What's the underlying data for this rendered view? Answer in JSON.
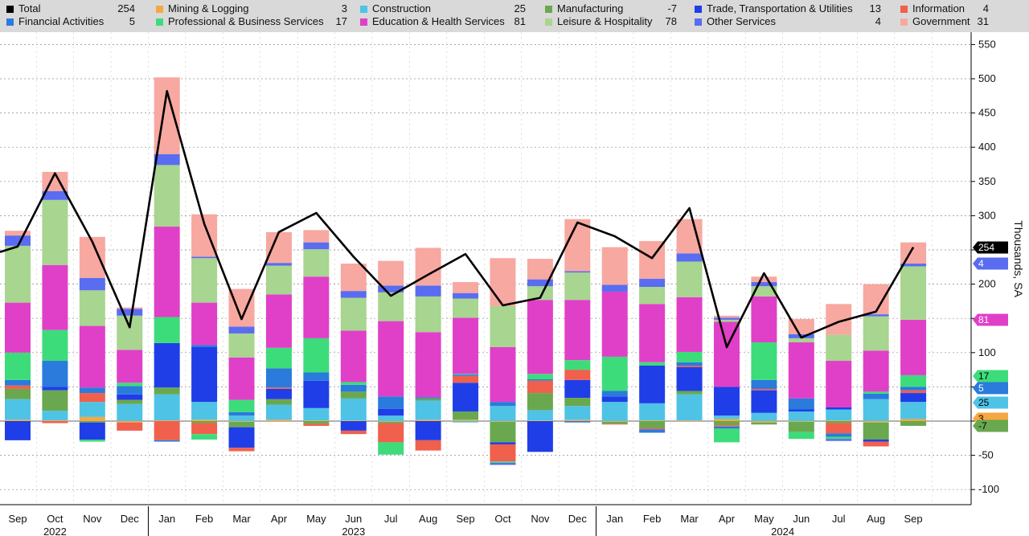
{
  "legend": [
    {
      "name": "Total",
      "value": "254",
      "color": "#000000"
    },
    {
      "name": "Mining & Logging",
      "value": "3",
      "color": "#f5a742"
    },
    {
      "name": "Construction",
      "value": "25",
      "color": "#4ec3e6"
    },
    {
      "name": "Manufacturing",
      "value": "-7",
      "color": "#6aa84f"
    },
    {
      "name": "Trade, Transportation & Utilities",
      "value": "13",
      "color": "#1f3ee8"
    },
    {
      "name": "Information",
      "value": "4",
      "color": "#f0604d"
    },
    {
      "name": "Financial Activities",
      "value": "5",
      "color": "#2a7bdc"
    },
    {
      "name": "Professional & Business Services",
      "value": "17",
      "color": "#3ddc7a"
    },
    {
      "name": "Education & Health Services",
      "value": "81",
      "color": "#e040c8"
    },
    {
      "name": "Leisure & Hospitality",
      "value": "78",
      "color": "#a8d58f"
    },
    {
      "name": "Other Services",
      "value": "4",
      "color": "#5a6cf0"
    },
    {
      "name": "Government",
      "value": "31",
      "color": "#f7a8a0"
    }
  ],
  "chart_data": {
    "type": "bar",
    "stacked": true,
    "ylabel": "Thousands, SA",
    "ylim": [
      -115,
      560
    ],
    "yticks": [
      550,
      500,
      450,
      400,
      350,
      300,
      250,
      200,
      150,
      100,
      50,
      0,
      -50,
      -100
    ],
    "categories": [
      "Sep",
      "Oct",
      "Nov",
      "Dec",
      "Jan",
      "Feb",
      "Mar",
      "Apr",
      "May",
      "Jun",
      "Jul",
      "Aug",
      "Sep",
      "Oct",
      "Nov",
      "Dec",
      "Jan",
      "Feb",
      "Mar",
      "Apr",
      "May",
      "Jun",
      "Jul",
      "Aug",
      "Sep"
    ],
    "year_labels": [
      {
        "label": "2022",
        "index": 1
      },
      {
        "label": "2023",
        "index": 9
      },
      {
        "label": "2024",
        "index": 20.5
      }
    ],
    "year_separators": [
      3.5,
      15.5
    ],
    "series": [
      {
        "name": "Mining & Logging",
        "color": "#f5a742",
        "values": [
          2,
          1,
          6,
          -2,
          1,
          2,
          -1,
          2,
          1,
          1,
          -1,
          2,
          2,
          -1,
          1,
          2,
          -1,
          1,
          1,
          3,
          -2,
          -1,
          1,
          -2,
          3
        ]
      },
      {
        "name": "Construction",
        "color": "#4ec3e6",
        "values": [
          30,
          14,
          22,
          25,
          38,
          26,
          8,
          22,
          18,
          32,
          8,
          28,
          -2,
          22,
          15,
          20,
          28,
          25,
          38,
          5,
          12,
          14,
          16,
          32,
          25
        ]
      },
      {
        "name": "Manufacturing",
        "color": "#6aa84f",
        "values": [
          15,
          30,
          -2,
          6,
          10,
          -3,
          -8,
          8,
          -4,
          10,
          -2,
          3,
          12,
          -30,
          25,
          12,
          -3,
          -10,
          5,
          -6,
          -3,
          -15,
          -3,
          -25,
          -7
        ]
      },
      {
        "name": "Trade, Transportation & Utilities",
        "color": "#1f3ee8",
        "values": [
          -28,
          5,
          -25,
          8,
          65,
          80,
          -30,
          15,
          40,
          -14,
          10,
          -28,
          42,
          -3,
          -45,
          26,
          8,
          55,
          35,
          42,
          33,
          3,
          3,
          -3,
          13
        ]
      },
      {
        "name": "Information",
        "color": "#f0604d",
        "values": [
          5,
          -3,
          13,
          -12,
          -28,
          -16,
          -5,
          2,
          -3,
          -5,
          -28,
          -15,
          10,
          -25,
          18,
          15,
          -1,
          -2,
          2,
          -2,
          2,
          0,
          -15,
          -7,
          4
        ]
      },
      {
        "name": "Financial Activities",
        "color": "#2a7bdc",
        "values": [
          8,
          38,
          8,
          12,
          -2,
          3,
          5,
          28,
          12,
          10,
          18,
          2,
          2,
          6,
          2,
          -2,
          8,
          -5,
          5,
          -3,
          13,
          16,
          -5,
          8,
          5
        ]
      },
      {
        "name": "Professional & Business Services",
        "color": "#3ddc7a",
        "values": [
          40,
          45,
          -3,
          5,
          38,
          -8,
          18,
          30,
          50,
          4,
          -18,
          0,
          1,
          -2,
          8,
          14,
          50,
          5,
          15,
          -20,
          55,
          -10,
          -3,
          3,
          17
        ]
      },
      {
        "name": "Education & Health Services",
        "color": "#e040c8",
        "values": [
          73,
          95,
          90,
          48,
          132,
          62,
          62,
          78,
          90,
          75,
          110,
          95,
          82,
          80,
          108,
          88,
          95,
          85,
          80,
          95,
          67,
          82,
          68,
          60,
          81
        ]
      },
      {
        "name": "Leisure & Hospitality",
        "color": "#a8d58f",
        "values": [
          83,
          95,
          52,
          50,
          90,
          65,
          35,
          42,
          40,
          48,
          42,
          52,
          28,
          60,
          20,
          40,
          0,
          25,
          52,
          3,
          15,
          6,
          38,
          50,
          78
        ]
      },
      {
        "name": "Other Services",
        "color": "#5a6cf0",
        "values": [
          15,
          13,
          18,
          10,
          16,
          2,
          10,
          4,
          10,
          10,
          10,
          16,
          8,
          -3,
          10,
          2,
          10,
          12,
          12,
          3,
          6,
          6,
          -3,
          3,
          4
        ]
      },
      {
        "name": "Government",
        "color": "#f7a8a0",
        "values": [
          7,
          28,
          60,
          2,
          112,
          62,
          55,
          45,
          18,
          40,
          36,
          55,
          16,
          70,
          30,
          76,
          55,
          55,
          50,
          3,
          8,
          22,
          45,
          44,
          31
        ]
      }
    ],
    "total": {
      "name": "Total",
      "color": "#000000",
      "values": [
        255,
        362,
        262,
        137,
        482,
        288,
        149,
        276,
        304,
        240,
        183,
        214,
        244,
        169,
        180,
        290,
        270,
        238,
        311,
        108,
        216,
        122,
        145,
        160,
        254
      ]
    },
    "end_tags": [
      {
        "value": "254",
        "color": "#000000",
        "text_color": "#ffffff",
        "level": 254
      },
      {
        "value": "4",
        "color": "#5a6cf0",
        "text_color": "#ffffff",
        "level": 229
      },
      {
        "value": "81",
        "color": "#e040c8",
        "text_color": "#ffffff",
        "level": 148
      },
      {
        "value": "17",
        "color": "#3ddc7a",
        "text_color": "#000000",
        "level": 67
      },
      {
        "value": "5",
        "color": "#2a7bdc",
        "text_color": "#ffffff",
        "level": 49
      },
      {
        "value": "25",
        "color": "#4ec3e6",
        "text_color": "#000000",
        "level": 28
      },
      {
        "value": "3",
        "color": "#f5a742",
        "text_color": "#000000",
        "level": 3
      },
      {
        "value": "-7",
        "color": "#6aa84f",
        "text_color": "#000000",
        "level": -7
      }
    ]
  }
}
